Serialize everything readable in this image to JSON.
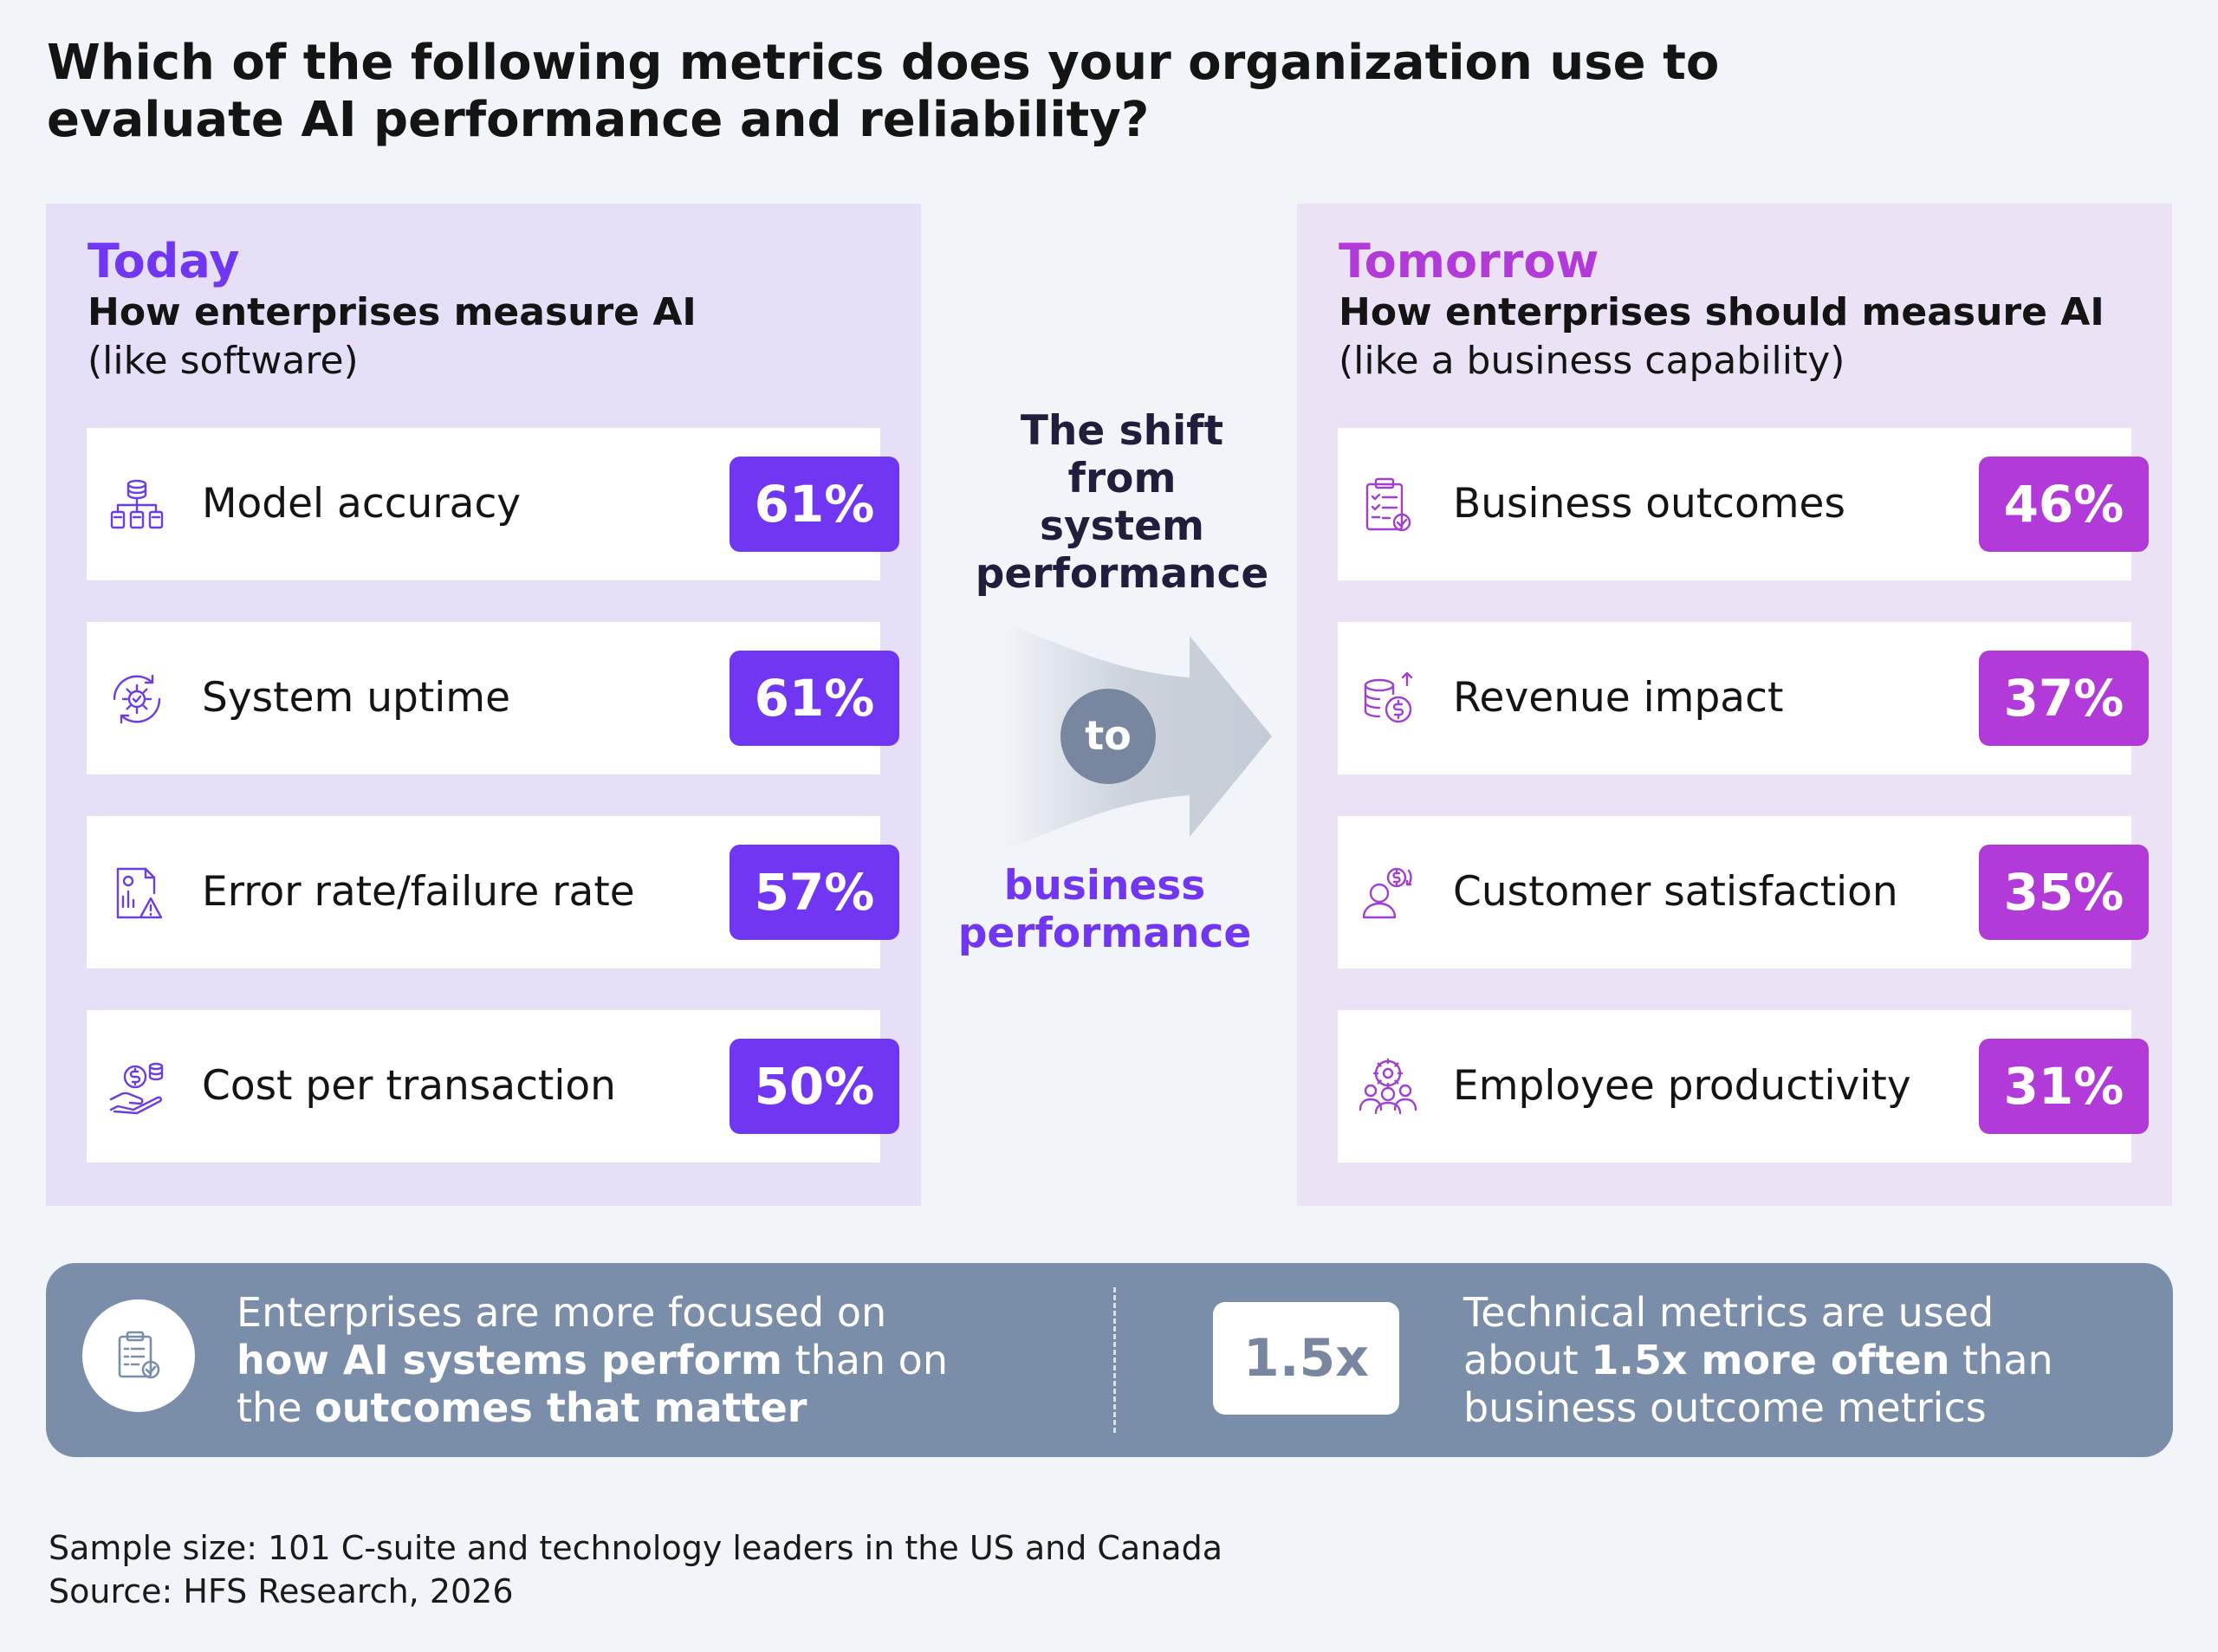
{
  "title_line1": "Which of the following metrics does your organization use to",
  "title_line2": "evaluate AI performance and reliability?",
  "today": {
    "heading": "Today",
    "subheading": "How enterprises measure AI",
    "note": "(like software)",
    "accent": "#7136f2",
    "items": [
      {
        "label": "Model accuracy",
        "value": "61%",
        "icon": "hierarchy-database-icon"
      },
      {
        "label": "System uptime",
        "value": "61%",
        "icon": "gear-cycle-icon"
      },
      {
        "label": "Error rate/failure rate",
        "value": "57%",
        "icon": "report-warning-icon"
      },
      {
        "label": "Cost per transaction",
        "value": "50%",
        "icon": "hand-coin-icon"
      }
    ]
  },
  "tomorrow": {
    "heading": "Tomorrow",
    "subheading": "How enterprises should measure AI",
    "note": "(like a business capability)",
    "accent": "#b13ad8",
    "items": [
      {
        "label": "Business outcomes",
        "value": "46%",
        "icon": "clipboard-check-icon"
      },
      {
        "label": "Revenue impact",
        "value": "37%",
        "icon": "coins-growth-icon"
      },
      {
        "label": "Customer satisfaction",
        "value": "35%",
        "icon": "customer-money-icon"
      },
      {
        "label": "Employee productivity",
        "value": "31%",
        "icon": "team-gear-icon"
      }
    ]
  },
  "shift": {
    "from_lines": [
      "The shift",
      "from",
      "system",
      "performance"
    ],
    "connector": "to",
    "to_lines": [
      "business",
      "performance"
    ]
  },
  "banner": {
    "left_part1": "Enterprises are more focused on",
    "left_bold1": "how AI systems perform",
    "left_part2": " than on",
    "left_part3": "the ",
    "left_bold2": "outcomes that matter",
    "multiplier": "1.5x",
    "right_part1": "Technical metrics are used",
    "right_part2": "about ",
    "right_bold": "1.5x more often",
    "right_part3": " than",
    "right_part4": "business outcome metrics"
  },
  "footnote_sample": "Sample size: 101 C-suite and technology leaders in the US and Canada",
  "footnote_source": "Source: HFS Research, 2026",
  "chart_data": {
    "type": "bar",
    "title": "Which of the following metrics does your organization use to evaluate AI performance and reliability?",
    "unit": "%",
    "groups": [
      {
        "name": "Today",
        "categories": [
          "Model accuracy",
          "System uptime",
          "Error rate/failure rate",
          "Cost per transaction"
        ],
        "values": [
          61,
          61,
          57,
          50
        ]
      },
      {
        "name": "Tomorrow",
        "categories": [
          "Business outcomes",
          "Revenue impact",
          "Customer satisfaction",
          "Employee productivity"
        ],
        "values": [
          46,
          37,
          35,
          31
        ]
      }
    ]
  }
}
